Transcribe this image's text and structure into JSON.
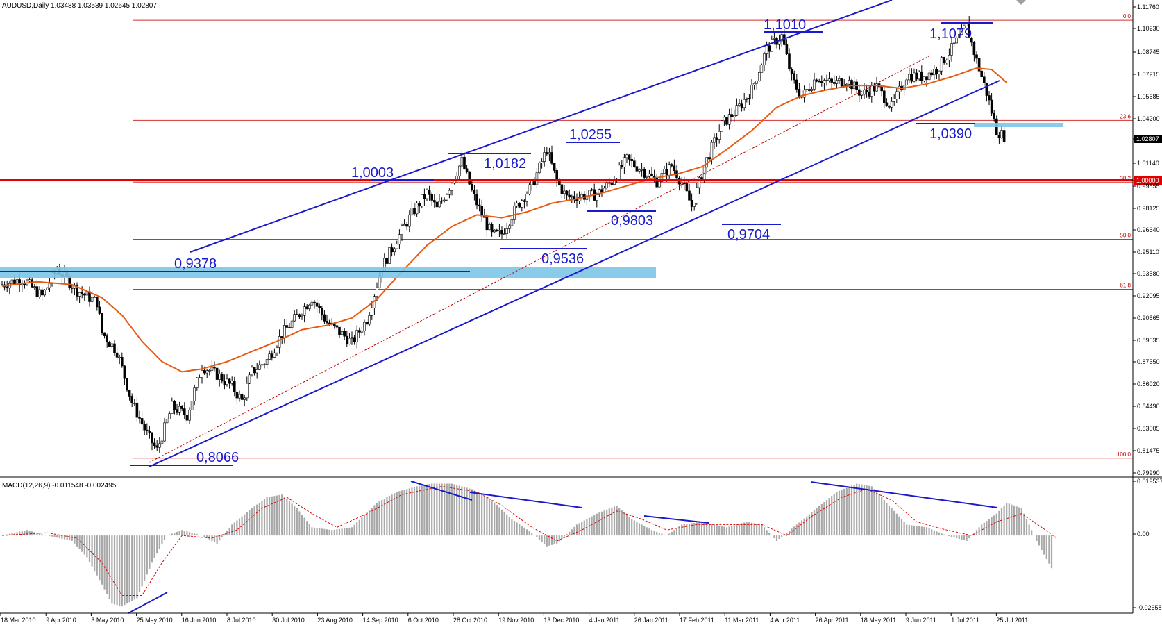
{
  "chart_data": [
    {
      "type": "candlestick",
      "symbol_info": "AUDUSD,Daily  1.03488 1.03539 1.02645 1.02807",
      "ylim": [
        0.7955,
        1.1218
      ],
      "y_ticks": [
        "1.11760",
        "1.10230",
        "1.08745",
        "1.07215",
        "1.05685",
        "1.04200",
        "1.02807",
        "1.01140",
        "1.00000",
        "0.99655",
        "0.98125",
        "0.96640",
        "0.95110",
        "0.93580",
        "0.92095",
        "0.90565",
        "0.89035",
        "0.87550",
        "0.86020",
        "0.84490",
        "0.83005",
        "0.81475",
        "0.79990"
      ],
      "current_price": "1.02807",
      "round_level": "1.00000",
      "x_ticks": [
        "18 Mar 2010",
        "9 Apr 2010",
        "3 May 2010",
        "25 May 2010",
        "16 Jun 2010",
        "8 Jul 2010",
        "30 Jul 2010",
        "23 Aug 2010",
        "14 Sep 2010",
        "6 Oct 2010",
        "28 Oct 2010",
        "19 Nov 2010",
        "13 Dec 2010",
        "4 Jan 2011",
        "26 Jan 2011",
        "17 Feb 2011",
        "11 Mar 2011",
        "4 Apr 2011",
        "26 Apr 2011",
        "18 May 2011",
        "9 Jun 2011",
        "1 Jul 2011",
        "25 Jul 2011"
      ],
      "fibonacci": [
        {
          "label": "0.0",
          "price": 1.1079
        },
        {
          "label": "23.6",
          "price": 1.039
        },
        {
          "label": "38.2",
          "price": 0.9965
        },
        {
          "label": "50.0",
          "price": 0.9572
        },
        {
          "label": "61.8",
          "price": 0.9228
        },
        {
          "label": "100.0",
          "price": 0.8066
        }
      ],
      "price_labels": [
        "1,1010",
        "1,1079",
        "1,0255",
        "1,0182",
        "1,0003",
        "1,0390",
        "0,9803",
        "0,9704",
        "0,9536",
        "0,9378",
        "0,8066"
      ],
      "close_anchors": [
        [
          0,
          0.926
        ],
        [
          8,
          0.93
        ],
        [
          16,
          0.918
        ],
        [
          22,
          0.937
        ],
        [
          30,
          0.922
        ],
        [
          38,
          0.914
        ],
        [
          40,
          0.893
        ],
        [
          46,
          0.88
        ],
        [
          52,
          0.845
        ],
        [
          58,
          0.823
        ],
        [
          62,
          0.812
        ],
        [
          68,
          0.842
        ],
        [
          74,
          0.836
        ],
        [
          80,
          0.87
        ],
        [
          86,
          0.864
        ],
        [
          92,
          0.856
        ],
        [
          96,
          0.846
        ],
        [
          100,
          0.866
        ],
        [
          106,
          0.874
        ],
        [
          112,
          0.892
        ],
        [
          118,
          0.904
        ],
        [
          124,
          0.917
        ],
        [
          130,
          0.9
        ],
        [
          136,
          0.892
        ],
        [
          140,
          0.886
        ],
        [
          146,
          0.902
        ],
        [
          152,
          0.938
        ],
        [
          158,
          0.957
        ],
        [
          164,
          0.975
        ],
        [
          170,
          0.989
        ],
        [
          174,
          0.978
        ],
        [
          178,
          0.99
        ],
        [
          184,
          1.011
        ],
        [
          188,
          0.99
        ],
        [
          192,
          0.974
        ],
        [
          196,
          0.96
        ],
        [
          200,
          0.961
        ],
        [
          206,
          0.98
        ],
        [
          212,
          0.994
        ],
        [
          218,
          1.019
        ],
        [
          222,
          0.997
        ],
        [
          226,
          0.986
        ],
        [
          232,
          0.987
        ],
        [
          238,
          0.988
        ],
        [
          244,
          0.997
        ],
        [
          250,
          1.012
        ],
        [
          256,
          1.005
        ],
        [
          262,
          0.997
        ],
        [
          268,
          1.008
        ],
        [
          272,
          0.996
        ],
        [
          276,
          0.98
        ],
        [
          282,
          1.012
        ],
        [
          288,
          1.036
        ],
        [
          294,
          1.046
        ],
        [
          300,
          1.06
        ],
        [
          306,
          1.088
        ],
        [
          312,
          1.097
        ],
        [
          316,
          1.068
        ],
        [
          320,
          1.055
        ],
        [
          326,
          1.069
        ],
        [
          332,
          1.064
        ],
        [
          338,
          1.067
        ],
        [
          344,
          1.057
        ],
        [
          350,
          1.062
        ],
        [
          356,
          1.048
        ],
        [
          362,
          1.07
        ],
        [
          368,
          1.069
        ],
        [
          374,
          1.074
        ],
        [
          380,
          1.088
        ],
        [
          386,
          1.104
        ],
        [
          390,
          1.08
        ],
        [
          394,
          1.058
        ],
        [
          398,
          1.032
        ],
        [
          401,
          1.028
        ]
      ],
      "ema": [
        [
          0,
          0.925
        ],
        [
          14,
          0.928
        ],
        [
          28,
          0.926
        ],
        [
          40,
          0.917
        ],
        [
          48,
          0.905
        ],
        [
          56,
          0.887
        ],
        [
          64,
          0.873
        ],
        [
          72,
          0.866
        ],
        [
          80,
          0.868
        ],
        [
          90,
          0.873
        ],
        [
          100,
          0.88
        ],
        [
          110,
          0.887
        ],
        [
          120,
          0.895
        ],
        [
          130,
          0.898
        ],
        [
          140,
          0.903
        ],
        [
          150,
          0.916
        ],
        [
          160,
          0.935
        ],
        [
          170,
          0.953
        ],
        [
          180,
          0.966
        ],
        [
          190,
          0.974
        ],
        [
          200,
          0.972
        ],
        [
          210,
          0.976
        ],
        [
          220,
          0.982
        ],
        [
          230,
          0.985
        ],
        [
          240,
          0.989
        ],
        [
          250,
          0.994
        ],
        [
          260,
          0.999
        ],
        [
          270,
          1.002
        ],
        [
          280,
          1.007
        ],
        [
          290,
          1.019
        ],
        [
          300,
          1.032
        ],
        [
          310,
          1.048
        ],
        [
          320,
          1.056
        ],
        [
          330,
          1.06
        ],
        [
          340,
          1.063
        ],
        [
          350,
          1.063
        ],
        [
          360,
          1.061
        ],
        [
          370,
          1.064
        ],
        [
          380,
          1.069
        ],
        [
          390,
          1.075
        ],
        [
          396,
          1.074
        ],
        [
          402,
          1.065
        ]
      ]
    },
    {
      "type": "histogram",
      "name": "MACD(12,26,9) -0.011548 -0.002495",
      "ylim": [
        -0.0285,
        0.0204
      ],
      "y_ticks": [
        "0.019537",
        "0.00",
        "-0.02658"
      ],
      "macd_anchors": [
        [
          0,
          0.0
        ],
        [
          10,
          0.002
        ],
        [
          18,
          0.0
        ],
        [
          28,
          -0.002
        ],
        [
          34,
          -0.008
        ],
        [
          40,
          -0.018
        ],
        [
          44,
          -0.025
        ],
        [
          48,
          -0.026
        ],
        [
          54,
          -0.023
        ],
        [
          60,
          -0.01
        ],
        [
          66,
          0.0
        ],
        [
          72,
          0.002
        ],
        [
          80,
          0.0
        ],
        [
          86,
          -0.003
        ],
        [
          92,
          0.004
        ],
        [
          100,
          0.01
        ],
        [
          106,
          0.014
        ],
        [
          112,
          0.015
        ],
        [
          118,
          0.01
        ],
        [
          124,
          0.003
        ],
        [
          132,
          0.002
        ],
        [
          140,
          0.003
        ],
        [
          150,
          0.012
        ],
        [
          158,
          0.016
        ],
        [
          166,
          0.018
        ],
        [
          172,
          0.019
        ],
        [
          180,
          0.019
        ],
        [
          188,
          0.017
        ],
        [
          196,
          0.013
        ],
        [
          204,
          0.006
        ],
        [
          212,
          0.001
        ],
        [
          218,
          -0.004
        ],
        [
          222,
          -0.003
        ],
        [
          230,
          0.004
        ],
        [
          238,
          0.008
        ],
        [
          246,
          0.011
        ],
        [
          252,
          0.006
        ],
        [
          260,
          0.002
        ],
        [
          266,
          0.0
        ],
        [
          272,
          0.004
        ],
        [
          280,
          0.005
        ],
        [
          290,
          0.003
        ],
        [
          298,
          0.005
        ],
        [
          304,
          0.004
        ],
        [
          310,
          -0.002
        ],
        [
          318,
          0.004
        ],
        [
          326,
          0.01
        ],
        [
          334,
          0.016
        ],
        [
          342,
          0.019
        ],
        [
          348,
          0.018
        ],
        [
          354,
          0.012
        ],
        [
          362,
          0.004
        ],
        [
          370,
          0.003
        ],
        [
          378,
          0.0
        ],
        [
          386,
          -0.002
        ],
        [
          392,
          0.004
        ],
        [
          398,
          0.008
        ],
        [
          402,
          0.012
        ],
        [
          408,
          0.01
        ],
        [
          414,
          -0.002
        ],
        [
          420,
          -0.012
        ]
      ],
      "signal_anchors": [
        [
          0,
          0.0
        ],
        [
          18,
          0.001
        ],
        [
          30,
          -0.001
        ],
        [
          40,
          -0.01
        ],
        [
          48,
          -0.022
        ],
        [
          56,
          -0.022
        ],
        [
          64,
          -0.01
        ],
        [
          72,
          0.0
        ],
        [
          84,
          -0.001
        ],
        [
          94,
          0.002
        ],
        [
          104,
          0.01
        ],
        [
          114,
          0.014
        ],
        [
          124,
          0.008
        ],
        [
          134,
          0.003
        ],
        [
          146,
          0.008
        ],
        [
          160,
          0.015
        ],
        [
          176,
          0.018
        ],
        [
          190,
          0.016
        ],
        [
          200,
          0.011
        ],
        [
          212,
          0.003
        ],
        [
          222,
          -0.002
        ],
        [
          232,
          0.002
        ],
        [
          246,
          0.009
        ],
        [
          256,
          0.006
        ],
        [
          266,
          0.002
        ],
        [
          278,
          0.004
        ],
        [
          292,
          0.004
        ],
        [
          304,
          0.004
        ],
        [
          314,
          0.0
        ],
        [
          324,
          0.007
        ],
        [
          336,
          0.014
        ],
        [
          346,
          0.017
        ],
        [
          356,
          0.013
        ],
        [
          366,
          0.005
        ],
        [
          378,
          0.002
        ],
        [
          388,
          0.0
        ],
        [
          398,
          0.005
        ],
        [
          408,
          0.008
        ],
        [
          416,
          0.003
        ],
        [
          422,
          -0.001
        ]
      ]
    }
  ]
}
